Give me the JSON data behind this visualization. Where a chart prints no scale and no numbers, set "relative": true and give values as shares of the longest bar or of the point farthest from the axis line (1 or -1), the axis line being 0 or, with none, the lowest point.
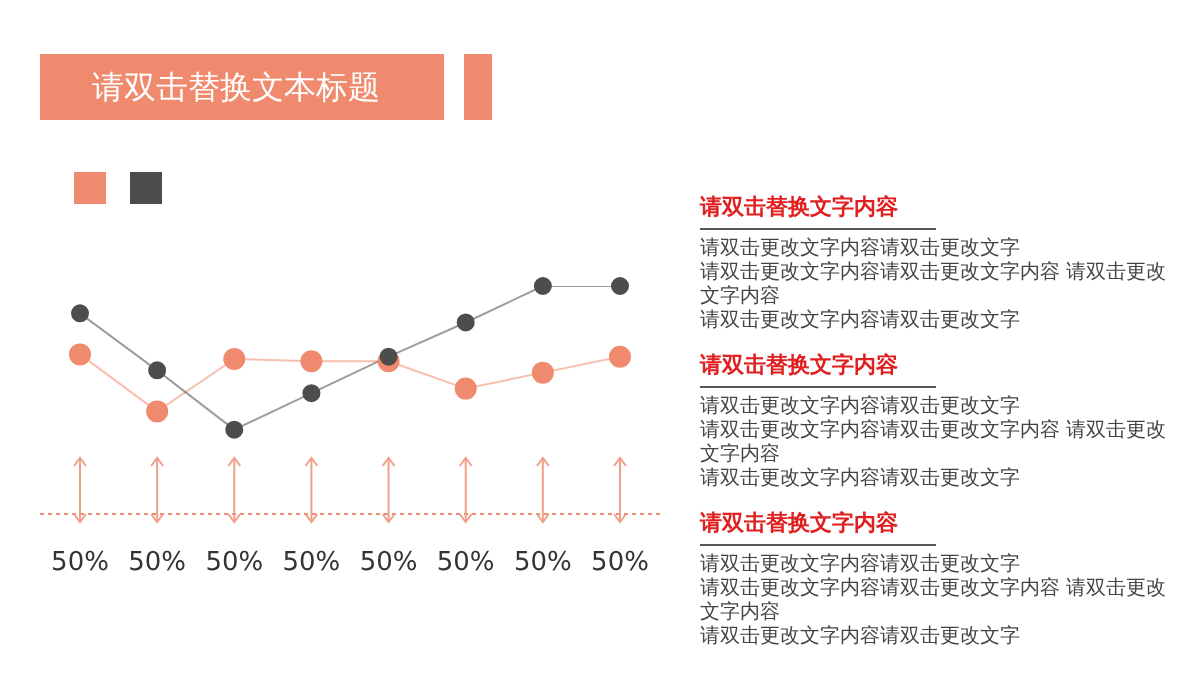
{
  "chart_data": {
    "type": "line",
    "title": "请双击替换文本标题",
    "relative": true,
    "categories": [
      "50%",
      "50%",
      "50%",
      "50%",
      "50%",
      "50%",
      "50%",
      "50%"
    ],
    "series": [
      {
        "color": "#f08a6e",
        "values": [
          0.7,
          0.45,
          0.68,
          0.67,
          0.67,
          0.55,
          0.62,
          0.69
        ]
      },
      {
        "color": "#4d4d4d",
        "values": [
          0.88,
          0.63,
          0.37,
          0.53,
          0.69,
          0.84,
          1,
          1
        ]
      }
    ],
    "marker": "circle",
    "line_style": "solid",
    "grid": false,
    "annotations": [
      "请双击替换文字内容",
      "请双击更改文字内容请双击更改文字",
      "请双击更改文字内容请双击更改文字内容 请双击更改文字内容",
      "请双击更改文字内容请双击更改文字",
      "请双击替换文字内容",
      "请双击更改文字内容请双击更改文字",
      "请双击更改文字内容请双击更改文字内容 请双击更改文字内容",
      "请双击更改文字内容请双击更改文字",
      "请双击替换文字内容",
      "请双击更改文字内容请双击更改文字",
      "请双击更改文字内容请双击更改文字内容 请双击更改文字内容",
      "请双击更改文字内容请双击更改文字"
    ]
  }
}
